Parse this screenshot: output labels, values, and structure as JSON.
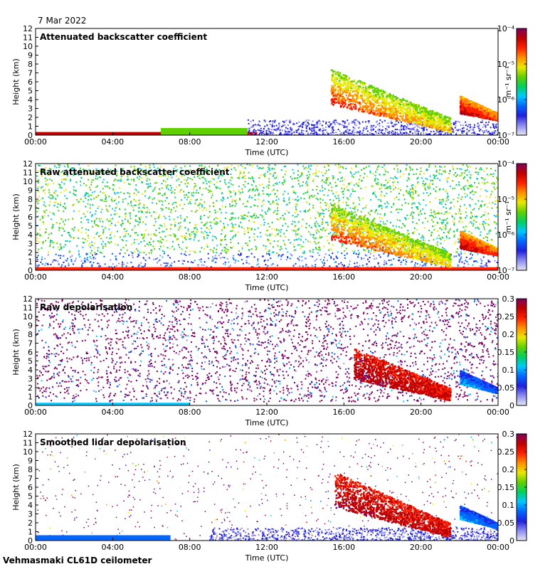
{
  "header": {
    "date": "7 Mar 2022"
  },
  "footer": {
    "instrument": "Vehmasmaki CL61D ceilometer"
  },
  "colors": {
    "jet": [
      "#e6e6f5",
      "#8c8cf0",
      "#2020e0",
      "#0066ff",
      "#00c8ff",
      "#00d060",
      "#60d000",
      "#e8e800",
      "#ff9000",
      "#ff2000",
      "#c00000",
      "#800060"
    ]
  },
  "chart_data": [
    {
      "type": "heatmap",
      "name": "panel-1",
      "title": "Attenuated backscatter coefficient",
      "xlabel": "Time (UTC)",
      "ylabel": "Height (km)",
      "x_ticks": [
        "00:00",
        "04:00",
        "08:00",
        "12:00",
        "16:00",
        "20:00",
        "00:00"
      ],
      "y_ticks": [
        "0",
        "1",
        "2",
        "3",
        "4",
        "5",
        "6",
        "7",
        "8",
        "9",
        "10",
        "11",
        "12"
      ],
      "xlim_hours": [
        0,
        24
      ],
      "ylim_km": [
        0,
        12
      ],
      "colorbar": {
        "scale": "log",
        "unit": "m⁻¹ sr⁻¹",
        "ticks": [
          "10⁻⁴",
          "10⁻⁵",
          "10⁻⁶",
          "10⁻⁷"
        ],
        "range": [
          1e-07,
          0.0001
        ]
      },
      "features": [
        {
          "type": "surface",
          "h_start": 0,
          "h_end": 11.5,
          "y0": 0.0,
          "y1": 0.35,
          "level": 0.88
        },
        {
          "type": "surface",
          "h_start": 6.5,
          "h_end": 11,
          "y0": 0.0,
          "y1": 0.8,
          "level": 0.55
        },
        {
          "type": "blue_layer",
          "h_start": 11,
          "h_end": 24,
          "y0": 0,
          "y1": 1.8,
          "level": 0.15
        },
        {
          "type": "cloud",
          "h_start": 15.3,
          "h_end": 21.5,
          "y_top_start": 7.5,
          "y_top_end": 2.0,
          "thickness": 4.0,
          "level_edge": 0.55,
          "level_core": 0.85
        },
        {
          "type": "cloud",
          "h_start": 22,
          "h_end": 24,
          "y_top_start": 4.5,
          "y_top_end": 2.5,
          "thickness": 2.0,
          "level_edge": 0.7,
          "level_core": 0.95
        }
      ]
    },
    {
      "type": "heatmap",
      "name": "panel-2",
      "title": "Raw attenuated backscatter coefficient",
      "xlabel": "Time (UTC)",
      "ylabel": "Height (km)",
      "x_ticks": [
        "00:00",
        "04:00",
        "08:00",
        "12:00",
        "16:00",
        "20:00",
        "00:00"
      ],
      "y_ticks": [
        "0",
        "1",
        "2",
        "3",
        "4",
        "5",
        "6",
        "7",
        "8",
        "9",
        "10",
        "11",
        "12"
      ],
      "xlim_hours": [
        0,
        24
      ],
      "ylim_km": [
        0,
        12
      ],
      "colorbar": {
        "scale": "log",
        "unit": "m⁻¹ sr⁻¹",
        "ticks": [
          "10⁻⁴",
          "10⁻⁵",
          "10⁻⁶",
          "10⁻⁷"
        ],
        "range": [
          1e-07,
          0.0001
        ]
      },
      "features": [
        {
          "type": "noise",
          "level_low": 0.35,
          "level_high": 0.65
        },
        {
          "type": "surface",
          "h_start": 0,
          "h_end": 24,
          "y0": 0.0,
          "y1": 0.35,
          "level": 0.85
        },
        {
          "type": "cloud",
          "h_start": 15.3,
          "h_end": 21.5,
          "y_top_start": 7.5,
          "y_top_end": 2.0,
          "thickness": 4.0,
          "level_edge": 0.55,
          "level_core": 0.85
        },
        {
          "type": "cloud",
          "h_start": 22,
          "h_end": 24,
          "y_top_start": 4.5,
          "y_top_end": 2.5,
          "thickness": 2.0,
          "level_edge": 0.7,
          "level_core": 0.95
        }
      ]
    },
    {
      "type": "heatmap",
      "name": "panel-3",
      "title": "Raw depolarisation",
      "xlabel": "Time (UTC)",
      "ylabel": "Height (km)",
      "x_ticks": [
        "00:00",
        "04:00",
        "08:00",
        "12:00",
        "16:00",
        "20:00",
        "00:00"
      ],
      "y_ticks": [
        "0",
        "1",
        "2",
        "3",
        "4",
        "5",
        "6",
        "7",
        "8",
        "9",
        "10",
        "11",
        "12"
      ],
      "xlim_hours": [
        0,
        24
      ],
      "ylim_km": [
        0,
        12
      ],
      "colorbar": {
        "scale": "linear",
        "unit": "",
        "ticks": [
          "0.3",
          "0.25",
          "0.2",
          "0.15",
          "0.1",
          "0.05",
          "0"
        ],
        "range": [
          0,
          0.3
        ]
      },
      "features": [
        {
          "type": "noise_purple"
        },
        {
          "type": "surface",
          "h_start": 0,
          "h_end": 8,
          "y0": 0.0,
          "y1": 0.3,
          "level": 0.35
        },
        {
          "type": "cloud",
          "h_start": 16.5,
          "h_end": 21.5,
          "y_top_start": 6.5,
          "y_top_end": 2.0,
          "thickness": 3.5,
          "level_edge": 0.85,
          "level_core": 0.95
        },
        {
          "type": "cloud",
          "h_start": 22,
          "h_end": 24,
          "y_top_start": 4.0,
          "y_top_end": 2.0,
          "thickness": 1.5,
          "level_edge": 0.2,
          "level_core": 0.35
        }
      ]
    },
    {
      "type": "heatmap",
      "name": "panel-4",
      "title": "Smoothed lidar depolarisation",
      "xlabel": "Time (UTC)",
      "ylabel": "Height (km)",
      "x_ticks": [
        "00:00",
        "04:00",
        "08:00",
        "12:00",
        "16:00",
        "20:00",
        "00:00"
      ],
      "y_ticks": [
        "0",
        "1",
        "2",
        "3",
        "4",
        "5",
        "6",
        "7",
        "8",
        "9",
        "10",
        "11",
        "12"
      ],
      "xlim_hours": [
        0,
        24
      ],
      "ylim_km": [
        0,
        12
      ],
      "colorbar": {
        "scale": "linear",
        "unit": "",
        "ticks": [
          "0.3",
          "0.25",
          "0.2",
          "0.15",
          "0.1",
          "0.05",
          "0"
        ],
        "range": [
          0,
          0.3
        ]
      },
      "features": [
        {
          "type": "sparse_purple"
        },
        {
          "type": "surface",
          "h_start": 0,
          "h_end": 7,
          "y0": 0.0,
          "y1": 0.6,
          "level": 0.3
        },
        {
          "type": "blue_layer",
          "h_start": 9,
          "h_end": 24,
          "y0": 0,
          "y1": 1.5,
          "level": 0.15
        },
        {
          "type": "cloud",
          "h_start": 15.5,
          "h_end": 21.5,
          "y_top_start": 7.8,
          "y_top_end": 2.0,
          "thickness": 4.0,
          "level_edge": 0.85,
          "level_core": 0.95
        },
        {
          "type": "cloud",
          "h_start": 22,
          "h_end": 24,
          "y_top_start": 4.0,
          "y_top_end": 2.0,
          "thickness": 1.5,
          "level_edge": 0.2,
          "level_core": 0.35
        }
      ]
    }
  ]
}
